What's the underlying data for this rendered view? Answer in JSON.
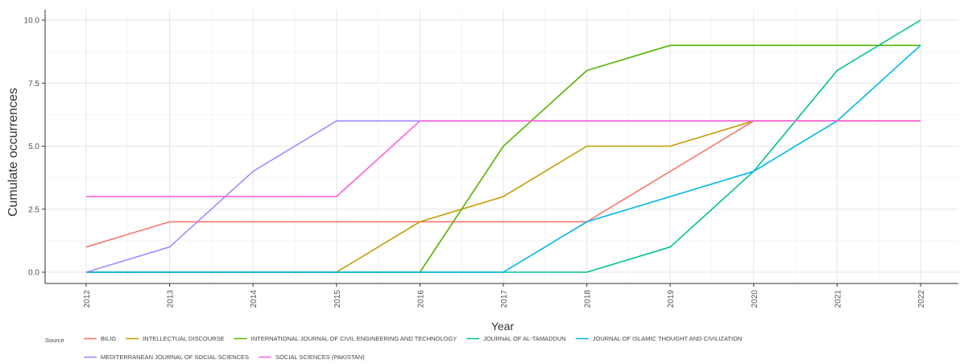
{
  "chart_data": {
    "type": "line",
    "xlabel": "Year",
    "ylabel": "Cumulate occurrences",
    "x": [
      2012,
      2013,
      2014,
      2015,
      2016,
      2017,
      2018,
      2019,
      2020,
      2021,
      2022
    ],
    "x_tick_labels": [
      "2012",
      "2013",
      "2014",
      "2015",
      "2016",
      "2017",
      "2018",
      "2019",
      "2020",
      "2021",
      "2022"
    ],
    "ylim": [
      0,
      10
    ],
    "y_ticks": [
      0,
      2.5,
      5,
      7.5,
      10
    ],
    "y_tick_labels": [
      "0.0",
      "2.5",
      "5.0",
      "7.5",
      "10.0"
    ],
    "grid": true,
    "legend_title": "Source",
    "legend_position": "bottom",
    "series": [
      {
        "name": "BILIG",
        "color": "#F8766D",
        "values": [
          1,
          2,
          2,
          2,
          2,
          2,
          2,
          4,
          6,
          6,
          6
        ]
      },
      {
        "name": "INTELLECTUAL DISCOURSE",
        "color": "#C49A00",
        "values": [
          0,
          0,
          0,
          0,
          2,
          3,
          5,
          5,
          6,
          6,
          6
        ]
      },
      {
        "name": "INTERNATIONAL JOURNAL OF CIVIL ENGINEERING AND TECHNOLOGY",
        "color": "#53B400",
        "values": [
          0,
          0,
          0,
          0,
          0,
          5,
          8,
          9,
          9,
          9,
          9
        ]
      },
      {
        "name": "JOURNAL OF AL-TAMADDUN",
        "color": "#00C094",
        "values": [
          0,
          0,
          0,
          0,
          0,
          0,
          0,
          1,
          4,
          8,
          10
        ]
      },
      {
        "name": "JOURNAL OF ISLAMIC THOUGHT AND CIVILIZATION",
        "color": "#00B6EB",
        "values": [
          0,
          0,
          0,
          0,
          0,
          0,
          2,
          3,
          4,
          6,
          9
        ]
      },
      {
        "name": "MEDITERRANEAN JOURNAL OF SOCIAL SCIENCES",
        "color": "#A58AFF",
        "values": [
          0,
          1,
          4,
          6,
          6,
          6,
          6,
          6,
          6,
          6,
          6
        ]
      },
      {
        "name": "SOCIAL SCIENCES (PAKISTAN)",
        "color": "#FB61D7",
        "values": [
          3,
          3,
          3,
          3,
          6,
          6,
          6,
          6,
          6,
          6,
          6
        ]
      }
    ]
  }
}
